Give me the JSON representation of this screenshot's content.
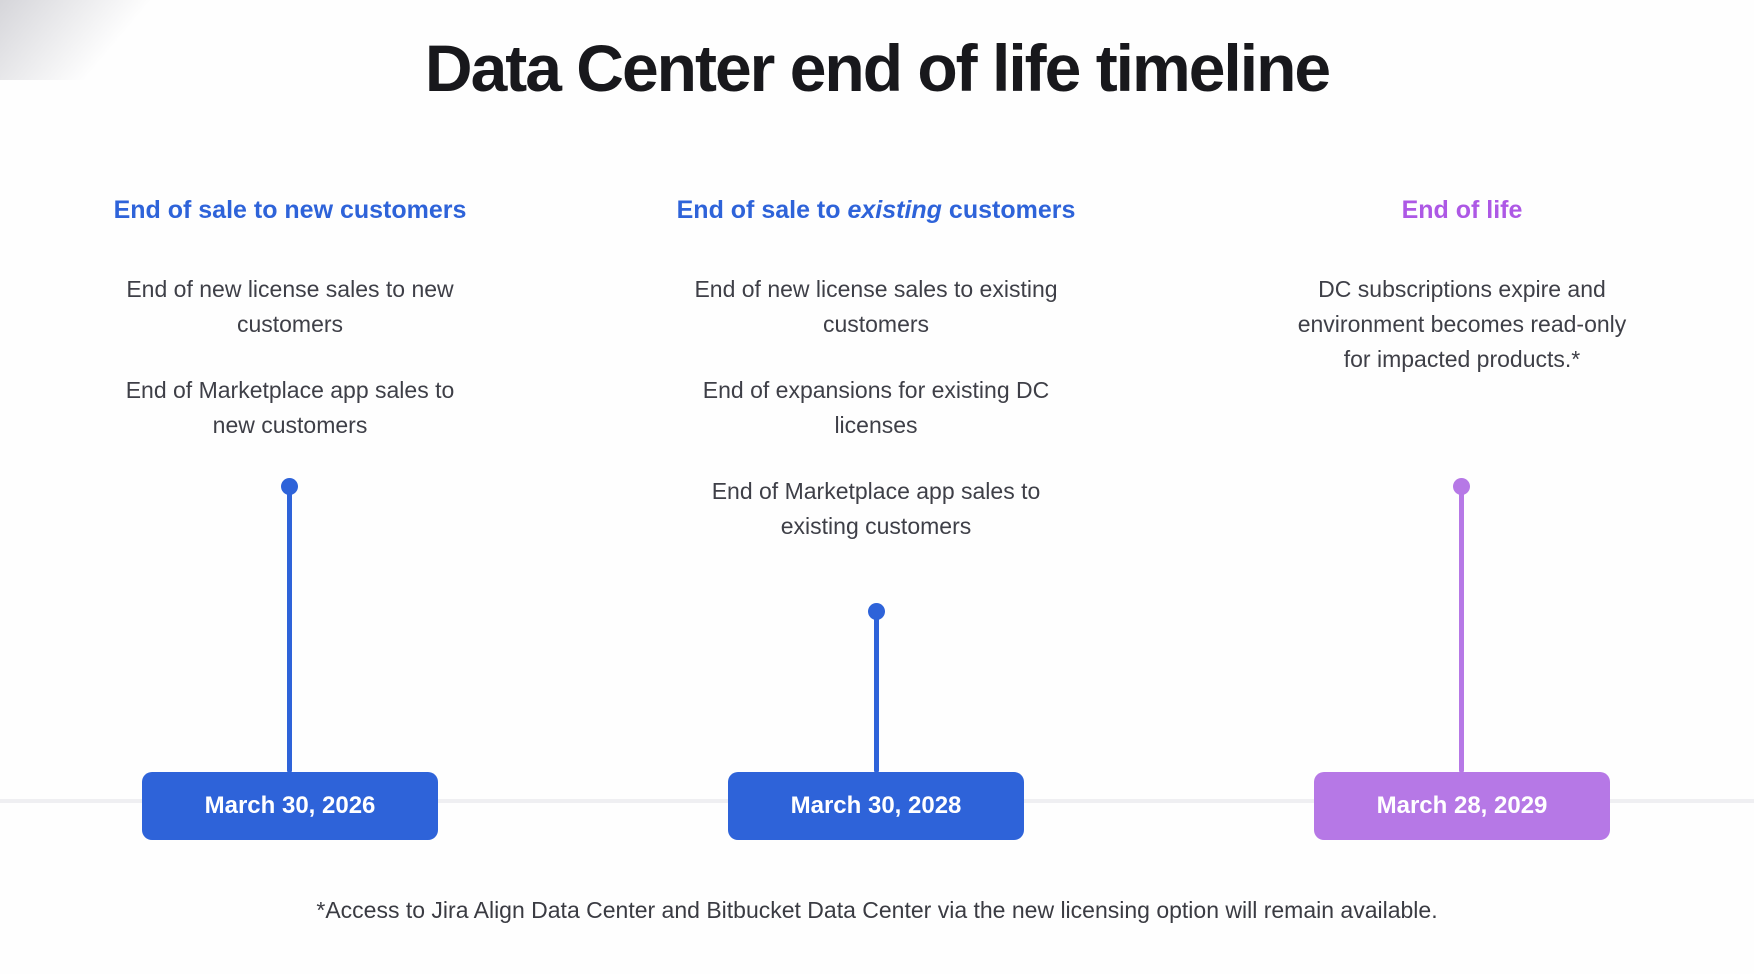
{
  "title": "Data Center end of life timeline",
  "colors": {
    "blue": "#2e63d9",
    "purple": "#b678e6",
    "purple_heading": "#ad58e5",
    "title_text": "#18181c",
    "body_text": "#3e3f47",
    "timeline_axis": "#efeff2",
    "date_text": "#ffffff"
  },
  "milestones": [
    {
      "heading": {
        "prefix": "End of sale to new customers",
        "em": "",
        "suffix": ""
      },
      "items": [
        "End of new license sales to new customers",
        "End of Marketplace app sales to new customers"
      ],
      "date": "March 30, 2026",
      "theme": "blue"
    },
    {
      "heading": {
        "prefix": "End of sale to ",
        "em": "existing",
        "suffix": " customers"
      },
      "items": [
        "End of new license sales to existing customers",
        "End of expansions for existing DC licenses",
        "End of Marketplace app sales to existing customers"
      ],
      "date": "March 30, 2028",
      "theme": "blue"
    },
    {
      "heading": {
        "prefix": "End of life",
        "em": "",
        "suffix": ""
      },
      "items": [
        "DC subscriptions expire and environment becomes read-only for impacted products.*"
      ],
      "date": "March 28, 2029",
      "theme": "purple"
    }
  ],
  "footnote": "*Access to Jira Align Data Center and Bitbucket Data Center via the new licensing option will remain available."
}
